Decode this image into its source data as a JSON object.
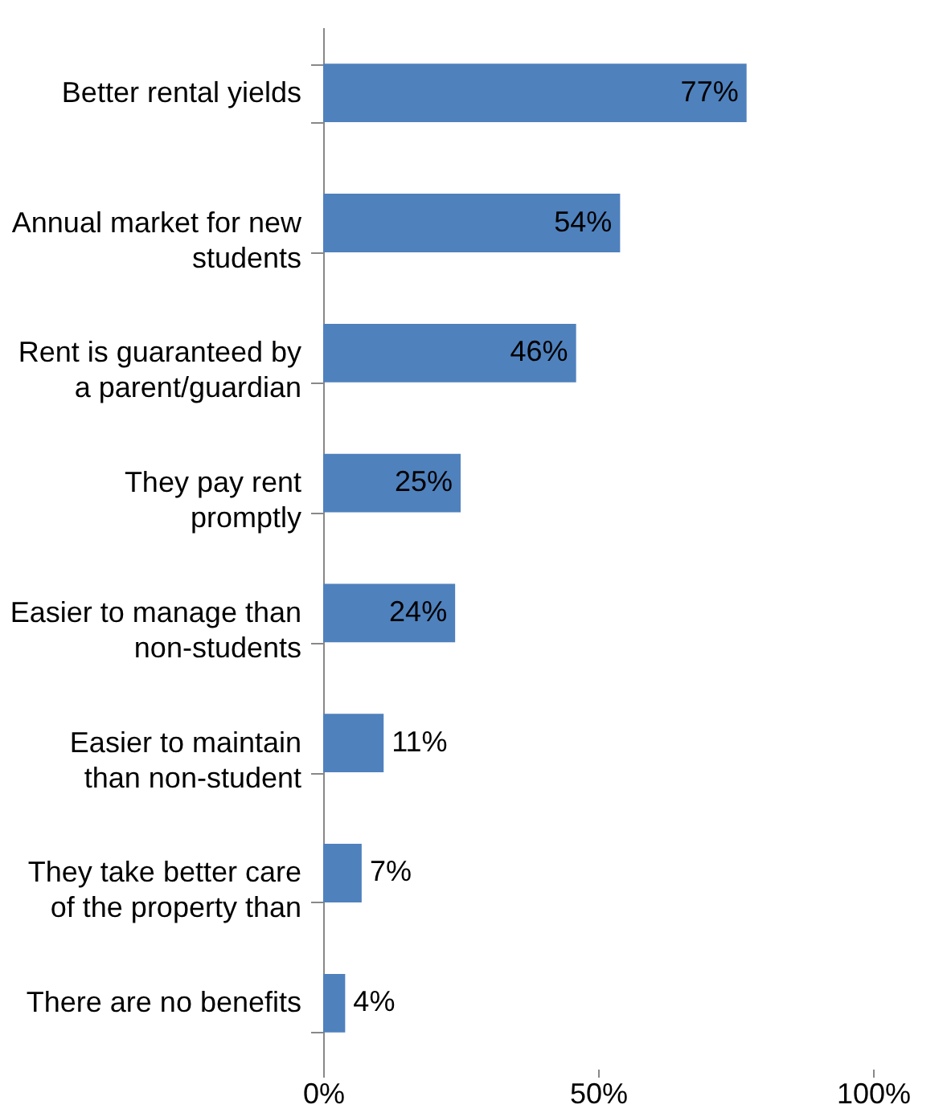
{
  "chart_data": {
    "type": "bar",
    "orientation": "horizontal",
    "categories": [
      "Better rental yields",
      "Annual market for new\nstudents",
      "Rent is guaranteed by\na parent/guardian",
      "They pay rent\npromptly",
      "Easier to manage than\nnon-students",
      "Easier to maintain\nthan non-student",
      "They take better care\nof the property than",
      "There are no benefits"
    ],
    "values": [
      77,
      54,
      46,
      25,
      24,
      11,
      7,
      4
    ],
    "value_labels": [
      "77%",
      "54%",
      "46%",
      "25%",
      "24%",
      "11%",
      "7%",
      "4%"
    ],
    "color": "#4f81bd",
    "xlim": [
      0,
      100
    ],
    "xticks": [
      {
        "value": 0,
        "label": "0%"
      },
      {
        "value": 50,
        "label": "50%"
      },
      {
        "value": 100,
        "label": "100%"
      }
    ],
    "grid": false
  }
}
